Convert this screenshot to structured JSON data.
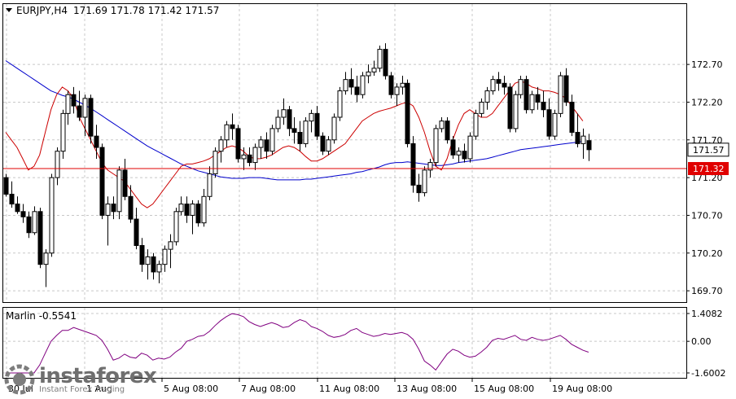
{
  "header": {
    "symbol_tf": "EURJPY,H4",
    "ohlc": "171.69 171.78 171.42 171.57"
  },
  "indicator": {
    "label": "Marlin -0.5541"
  },
  "watermark": {
    "brand": "instaforex",
    "tagline": "Instant Forex Trading"
  },
  "colors": {
    "background": "#ffffff",
    "candle": "#000000",
    "ma_fast": "#cc0000",
    "ma_slow": "#0000cc",
    "hline": "#e00000",
    "oscillator": "#800080",
    "grid": "#c8c8c8"
  },
  "chart_data": [
    {
      "type": "candlestick",
      "title": "EURJPY,H4",
      "x_tick_labels": [
        "30 Jul",
        "1 Aug",
        "5 Aug 08:00",
        "7 Aug 08:00",
        "11 Aug 08:00",
        "13 Aug 08:00",
        "15 Aug 08:00",
        "19 Aug 08:00"
      ],
      "y_tick_labels": [
        "172.70",
        "172.20",
        "171.70",
        "171.20",
        "170.70",
        "170.20",
        "169.70"
      ],
      "ylim": [
        169.55,
        173.5
      ],
      "grid": true,
      "price_label": "171.57",
      "hline_label": "171.32",
      "hline_value": 171.32,
      "candles": [
        [
          171.2,
          171.25,
          170.95,
          170.98
        ],
        [
          170.98,
          171.15,
          170.8,
          170.85
        ],
        [
          170.85,
          170.95,
          170.72,
          170.75
        ],
        [
          170.75,
          170.85,
          170.6,
          170.68
        ],
        [
          170.68,
          170.75,
          170.4,
          170.47
        ],
        [
          170.47,
          170.82,
          170.44,
          170.75
        ],
        [
          170.75,
          170.8,
          170.0,
          170.05
        ],
        [
          170.05,
          170.25,
          169.75,
          170.2
        ],
        [
          170.2,
          171.25,
          170.15,
          171.2
        ],
        [
          171.2,
          171.6,
          171.1,
          171.55
        ],
        [
          171.55,
          172.1,
          171.45,
          172.05
        ],
        [
          172.05,
          172.35,
          171.9,
          172.3
        ],
        [
          172.3,
          172.4,
          172.05,
          172.15
        ],
        [
          172.15,
          172.35,
          171.95,
          172.0
        ],
        [
          172.0,
          172.3,
          171.75,
          172.25
        ],
        [
          172.25,
          172.3,
          171.65,
          171.75
        ],
        [
          171.75,
          171.9,
          171.45,
          171.6
        ],
        [
          171.6,
          171.65,
          170.65,
          170.7
        ],
        [
          170.7,
          170.95,
          170.3,
          170.85
        ],
        [
          170.85,
          170.95,
          170.65,
          170.75
        ],
        [
          170.75,
          171.35,
          170.65,
          171.3
        ],
        [
          171.3,
          171.45,
          170.9,
          170.95
        ],
        [
          170.95,
          171.1,
          170.6,
          170.65
        ],
        [
          170.65,
          170.8,
          170.25,
          170.3
        ],
        [
          170.3,
          170.4,
          169.95,
          170.05
        ],
        [
          170.05,
          170.25,
          169.85,
          170.15
        ],
        [
          170.15,
          170.2,
          169.85,
          169.95
        ],
        [
          169.95,
          170.1,
          169.8,
          170.05
        ],
        [
          170.05,
          170.3,
          169.95,
          170.25
        ],
        [
          170.25,
          170.45,
          170.0,
          170.35
        ],
        [
          170.35,
          170.8,
          170.3,
          170.75
        ],
        [
          170.75,
          170.95,
          170.7,
          170.85
        ],
        [
          170.85,
          170.95,
          170.6,
          170.7
        ],
        [
          170.7,
          170.9,
          170.45,
          170.85
        ],
        [
          170.85,
          170.9,
          170.55,
          170.6
        ],
        [
          170.6,
          171.05,
          170.55,
          170.95
        ],
        [
          170.95,
          171.35,
          170.9,
          171.25
        ],
        [
          171.25,
          171.6,
          171.2,
          171.55
        ],
        [
          171.55,
          171.75,
          171.4,
          171.7
        ],
        [
          171.7,
          171.95,
          171.6,
          171.9
        ],
        [
          171.9,
          172.05,
          171.7,
          171.85
        ],
        [
          171.85,
          171.9,
          171.4,
          171.45
        ],
        [
          171.45,
          171.6,
          171.3,
          171.5
        ],
        [
          171.5,
          171.6,
          171.35,
          171.4
        ],
        [
          171.4,
          171.65,
          171.3,
          171.6
        ],
        [
          171.6,
          171.75,
          171.45,
          171.7
        ],
        [
          171.7,
          171.8,
          171.45,
          171.55
        ],
        [
          171.55,
          171.9,
          171.5,
          171.85
        ],
        [
          171.85,
          172.1,
          171.8,
          172.0
        ],
        [
          172.0,
          172.25,
          171.9,
          172.1
        ],
        [
          172.1,
          172.15,
          171.75,
          171.85
        ],
        [
          171.85,
          172.0,
          171.65,
          171.8
        ],
        [
          171.8,
          171.95,
          171.55,
          171.65
        ],
        [
          171.65,
          172.0,
          171.6,
          171.95
        ],
        [
          171.95,
          172.1,
          171.8,
          172.05
        ],
        [
          172.05,
          172.15,
          171.7,
          171.75
        ],
        [
          171.75,
          171.8,
          171.5,
          171.55
        ],
        [
          171.55,
          171.75,
          171.5,
          171.7
        ],
        [
          171.7,
          172.05,
          171.65,
          172.0
        ],
        [
          172.0,
          172.4,
          171.95,
          172.35
        ],
        [
          172.35,
          172.6,
          172.3,
          172.5
        ],
        [
          172.5,
          172.65,
          172.3,
          172.4
        ],
        [
          172.4,
          172.55,
          172.2,
          172.3
        ],
        [
          172.3,
          172.6,
          172.25,
          172.55
        ],
        [
          172.55,
          172.7,
          172.45,
          172.6
        ],
        [
          172.6,
          172.75,
          172.55,
          172.65
        ],
        [
          172.65,
          172.95,
          172.6,
          172.9
        ],
        [
          172.9,
          172.98,
          172.5,
          172.55
        ],
        [
          172.55,
          172.6,
          172.25,
          172.3
        ],
        [
          172.3,
          172.45,
          172.15,
          172.4
        ],
        [
          172.4,
          172.55,
          172.3,
          172.45
        ],
        [
          172.45,
          172.5,
          171.6,
          171.65
        ],
        [
          171.65,
          171.75,
          171.0,
          171.1
        ],
        [
          171.1,
          171.25,
          170.88,
          171.0
        ],
        [
          171.0,
          171.35,
          170.95,
          171.3
        ],
        [
          171.3,
          171.45,
          171.2,
          171.4
        ],
        [
          171.4,
          171.9,
          171.35,
          171.85
        ],
        [
          171.85,
          172.0,
          171.8,
          171.95
        ],
        [
          171.95,
          172.0,
          171.65,
          171.7
        ],
        [
          171.7,
          171.75,
          171.45,
          171.5
        ],
        [
          171.5,
          171.6,
          171.4,
          171.55
        ],
        [
          171.55,
          171.65,
          171.4,
          171.45
        ],
        [
          171.45,
          171.8,
          171.4,
          171.75
        ],
        [
          171.75,
          172.1,
          171.7,
          172.05
        ],
        [
          172.05,
          172.25,
          172.0,
          172.2
        ],
        [
          172.2,
          172.4,
          172.1,
          172.35
        ],
        [
          172.35,
          172.55,
          172.3,
          172.5
        ],
        [
          172.5,
          172.6,
          172.35,
          172.45
        ],
        [
          172.45,
          172.55,
          172.3,
          172.4
        ],
        [
          172.4,
          172.45,
          171.8,
          171.85
        ],
        [
          171.85,
          172.35,
          171.8,
          172.3
        ],
        [
          172.3,
          172.55,
          172.25,
          172.5
        ],
        [
          172.5,
          172.55,
          172.05,
          172.1
        ],
        [
          172.1,
          172.35,
          172.05,
          172.3
        ],
        [
          172.3,
          172.4,
          172.1,
          172.2
        ],
        [
          172.2,
          172.35,
          172.0,
          172.1
        ],
        [
          172.1,
          172.25,
          171.7,
          171.75
        ],
        [
          171.75,
          172.1,
          171.7,
          172.05
        ],
        [
          172.05,
          172.6,
          172.0,
          172.55
        ],
        [
          172.55,
          172.65,
          172.15,
          172.2
        ],
        [
          172.2,
          172.3,
          171.75,
          171.8
        ],
        [
          171.8,
          172.05,
          171.6,
          171.65
        ],
        [
          171.65,
          171.85,
          171.45,
          171.75
        ],
        [
          171.69,
          171.78,
          171.42,
          171.57
        ]
      ],
      "ma_fast": [
        171.8,
        171.7,
        171.6,
        171.45,
        171.3,
        171.35,
        171.5,
        171.8,
        172.1,
        172.3,
        172.4,
        172.35,
        172.25,
        172.0,
        171.85,
        171.7,
        171.55,
        171.4,
        171.3,
        171.25,
        171.2,
        171.15,
        171.05,
        170.95,
        170.85,
        170.8,
        170.85,
        170.95,
        171.05,
        171.15,
        171.25,
        171.35,
        171.38,
        171.38,
        171.4,
        171.42,
        171.45,
        171.5,
        171.55,
        171.6,
        171.62,
        171.6,
        171.55,
        171.48,
        171.45,
        171.45,
        171.47,
        171.5,
        171.55,
        171.6,
        171.62,
        171.6,
        171.55,
        171.48,
        171.42,
        171.42,
        171.45,
        171.5,
        171.55,
        171.6,
        171.65,
        171.75,
        171.85,
        171.95,
        172.0,
        172.05,
        172.08,
        172.1,
        172.12,
        172.15,
        172.18,
        172.2,
        172.15,
        172.0,
        171.8,
        171.55,
        171.35,
        171.3,
        171.45,
        171.7,
        171.9,
        172.05,
        172.1,
        172.05,
        172.0,
        172.0,
        172.05,
        172.15,
        172.25,
        172.35,
        172.45,
        172.48,
        172.45,
        172.4,
        172.38,
        172.35,
        172.35,
        172.33,
        172.3,
        172.25,
        172.15,
        172.05,
        171.95
      ],
      "ma_slow": [
        172.75,
        172.7,
        172.65,
        172.6,
        172.55,
        172.5,
        172.45,
        172.4,
        172.35,
        172.32,
        172.29,
        172.27,
        172.24,
        172.2,
        172.16,
        172.12,
        172.07,
        172.02,
        171.97,
        171.92,
        171.87,
        171.82,
        171.77,
        171.72,
        171.67,
        171.62,
        171.58,
        171.54,
        171.5,
        171.46,
        171.42,
        171.38,
        171.35,
        171.32,
        171.29,
        171.27,
        171.25,
        171.23,
        171.21,
        171.2,
        171.19,
        171.19,
        171.19,
        171.2,
        171.2,
        171.2,
        171.19,
        171.18,
        171.17,
        171.17,
        171.17,
        171.17,
        171.17,
        171.18,
        171.18,
        171.19,
        171.2,
        171.21,
        171.22,
        171.23,
        171.24,
        171.25,
        171.27,
        171.28,
        171.3,
        171.32,
        171.34,
        171.37,
        171.39,
        171.4,
        171.4,
        171.41,
        171.4,
        171.39,
        171.38,
        171.37,
        171.36,
        171.36,
        171.37,
        171.38,
        171.4,
        171.41,
        171.42,
        171.43,
        171.44,
        171.45,
        171.47,
        171.49,
        171.51,
        171.53,
        171.55,
        171.57,
        171.58,
        171.59,
        171.6,
        171.61,
        171.62,
        171.63,
        171.64,
        171.65,
        171.66,
        171.67,
        171.68
      ]
    },
    {
      "type": "line",
      "title": "Marlin -0.5541",
      "y_tick_labels": [
        "1.4082",
        "0.00",
        "-1.6002"
      ],
      "ylim": [
        -1.6002,
        1.4082
      ],
      "series": [
        {
          "name": "Marlin",
          "values": [
            -1.6,
            -1.6,
            -1.6,
            -1.6,
            -1.6,
            -1.6,
            -1.2,
            -0.6,
            0.0,
            0.3,
            0.55,
            0.55,
            0.7,
            0.6,
            0.5,
            0.4,
            0.3,
            0.05,
            -0.4,
            -0.95,
            -0.85,
            -0.65,
            -0.8,
            -0.85,
            -0.6,
            -0.7,
            -0.95,
            -0.85,
            -0.9,
            -0.8,
            -0.55,
            -0.35,
            0.0,
            0.1,
            0.25,
            0.3,
            0.5,
            0.8,
            1.05,
            1.25,
            1.4,
            1.35,
            1.25,
            1.0,
            0.85,
            0.75,
            0.85,
            0.95,
            0.85,
            0.7,
            0.75,
            0.95,
            1.1,
            1.0,
            0.75,
            0.65,
            0.5,
            0.3,
            0.2,
            0.25,
            0.35,
            0.55,
            0.65,
            0.45,
            0.35,
            0.25,
            0.3,
            0.4,
            0.35,
            0.4,
            0.45,
            0.35,
            0.1,
            -0.4,
            -1.0,
            -1.2,
            -1.45,
            -1.05,
            -0.65,
            -0.4,
            -0.5,
            -0.7,
            -0.8,
            -0.75,
            -0.55,
            -0.3,
            0.05,
            0.15,
            0.1,
            0.2,
            0.3,
            0.1,
            0.05,
            0.2,
            0.1,
            0.05,
            0.1,
            0.2,
            0.3,
            0.1,
            -0.15,
            -0.3,
            -0.45,
            -0.55
          ]
        }
      ]
    }
  ]
}
